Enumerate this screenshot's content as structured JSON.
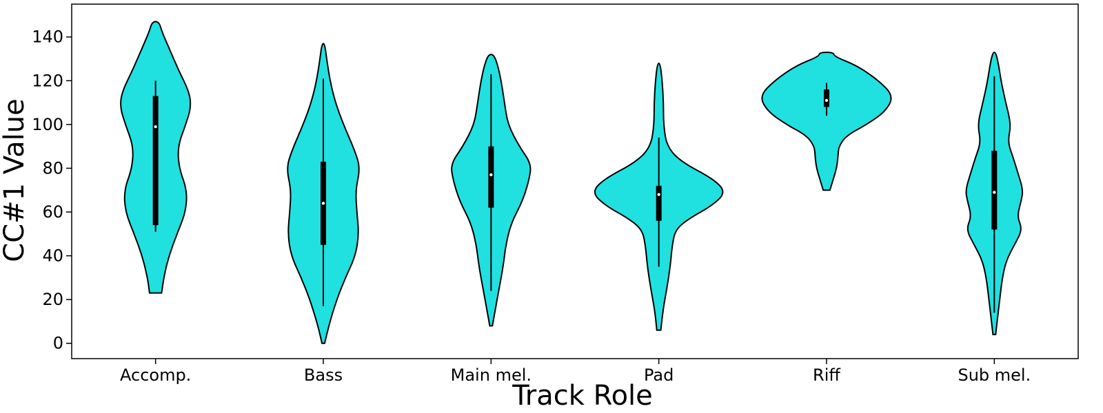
{
  "chart_data": {
    "type": "violin",
    "xlabel": "Track Role",
    "ylabel": "CC#1 Value",
    "ylim": [
      -7,
      155
    ],
    "yticks": [
      0,
      20,
      40,
      60,
      80,
      100,
      120,
      140
    ],
    "grid": false,
    "fill_color": "#20e0e0",
    "categories": [
      "Accomp.",
      "Bass",
      "Main mel.",
      "Pad",
      "Riff",
      "Sub mel."
    ],
    "violins": [
      {
        "category": "Accomp.",
        "min": 23,
        "max": 147,
        "q1": 54,
        "median": 99,
        "q3": 113,
        "whisker_low": 51,
        "whisker_high": 120,
        "profile": [
          [
            23,
            0.09
          ],
          [
            30,
            0.12
          ],
          [
            40,
            0.2
          ],
          [
            50,
            0.32
          ],
          [
            60,
            0.45
          ],
          [
            70,
            0.47
          ],
          [
            80,
            0.35
          ],
          [
            90,
            0.33
          ],
          [
            100,
            0.45
          ],
          [
            108,
            0.53
          ],
          [
            115,
            0.5
          ],
          [
            125,
            0.34
          ],
          [
            135,
            0.2
          ],
          [
            142,
            0.1
          ],
          [
            147,
            0.05
          ]
        ]
      },
      {
        "category": "Bass",
        "min": 0,
        "max": 137,
        "q1": 45,
        "median": 64,
        "q3": 83,
        "whisker_low": 17,
        "whisker_high": 121,
        "profile": [
          [
            0,
            0.02
          ],
          [
            8,
            0.08
          ],
          [
            20,
            0.2
          ],
          [
            30,
            0.33
          ],
          [
            40,
            0.48
          ],
          [
            50,
            0.53
          ],
          [
            60,
            0.5
          ],
          [
            70,
            0.48
          ],
          [
            80,
            0.55
          ],
          [
            88,
            0.47
          ],
          [
            100,
            0.3
          ],
          [
            110,
            0.18
          ],
          [
            120,
            0.1
          ],
          [
            130,
            0.05
          ],
          [
            137,
            0.02
          ]
        ]
      },
      {
        "category": "Main mel.",
        "min": 8,
        "max": 132,
        "q1": 62,
        "median": 77,
        "q3": 90,
        "whisker_low": 24,
        "whisker_high": 123,
        "profile": [
          [
            8,
            0.02
          ],
          [
            15,
            0.06
          ],
          [
            25,
            0.12
          ],
          [
            35,
            0.18
          ],
          [
            45,
            0.22
          ],
          [
            55,
            0.3
          ],
          [
            65,
            0.47
          ],
          [
            75,
            0.57
          ],
          [
            82,
            0.6
          ],
          [
            90,
            0.42
          ],
          [
            100,
            0.25
          ],
          [
            110,
            0.2
          ],
          [
            120,
            0.15
          ],
          [
            127,
            0.1
          ],
          [
            132,
            0.04
          ]
        ]
      },
      {
        "category": "Pad",
        "min": 6,
        "max": 128,
        "q1": 56,
        "median": 68,
        "q3": 72,
        "whisker_low": 35,
        "whisker_high": 94,
        "profile": [
          [
            6,
            0.03
          ],
          [
            15,
            0.06
          ],
          [
            25,
            0.12
          ],
          [
            35,
            0.17
          ],
          [
            45,
            0.2
          ],
          [
            52,
            0.25
          ],
          [
            57,
            0.45
          ],
          [
            63,
            0.8
          ],
          [
            69,
            1.0
          ],
          [
            75,
            0.82
          ],
          [
            83,
            0.33
          ],
          [
            90,
            0.12
          ],
          [
            100,
            0.07
          ],
          [
            110,
            0.07
          ],
          [
            120,
            0.05
          ],
          [
            128,
            0.02
          ]
        ]
      },
      {
        "category": "Riff",
        "min": 70,
        "max": 133,
        "q1": 108,
        "median": 111,
        "q3": 116,
        "whisker_low": 104,
        "whisker_high": 119,
        "profile": [
          [
            70,
            0.05
          ],
          [
            75,
            0.1
          ],
          [
            80,
            0.15
          ],
          [
            85,
            0.17
          ],
          [
            90,
            0.18
          ],
          [
            95,
            0.3
          ],
          [
            100,
            0.6
          ],
          [
            106,
            0.88
          ],
          [
            113,
            1.0
          ],
          [
            120,
            0.78
          ],
          [
            127,
            0.45
          ],
          [
            131,
            0.12
          ],
          [
            133,
            0.1
          ]
        ]
      },
      {
        "category": "Sub mel.",
        "min": 4,
        "max": 133,
        "q1": 52,
        "median": 69,
        "q3": 88,
        "whisker_low": 14,
        "whisker_high": 122,
        "profile": [
          [
            4,
            0.02
          ],
          [
            12,
            0.05
          ],
          [
            20,
            0.08
          ],
          [
            30,
            0.12
          ],
          [
            38,
            0.18
          ],
          [
            45,
            0.3
          ],
          [
            52,
            0.42
          ],
          [
            58,
            0.34
          ],
          [
            65,
            0.4
          ],
          [
            70,
            0.43
          ],
          [
            78,
            0.35
          ],
          [
            85,
            0.28
          ],
          [
            92,
            0.2
          ],
          [
            100,
            0.25
          ],
          [
            110,
            0.17
          ],
          [
            120,
            0.1
          ],
          [
            128,
            0.06
          ],
          [
            133,
            0.02
          ]
        ]
      }
    ]
  }
}
